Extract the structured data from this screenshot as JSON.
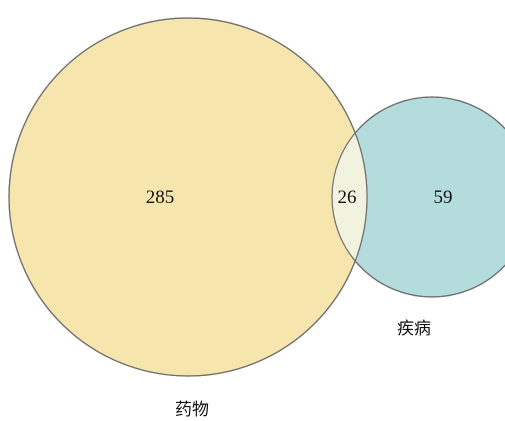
{
  "venn": {
    "sets": [
      {
        "label": "药物",
        "count": "285",
        "color": "#f6e6ad"
      },
      {
        "label": "疾病",
        "count": "59",
        "color": "#b5dcdc"
      }
    ],
    "intersection": {
      "count": "26",
      "color": "#f1f3df"
    },
    "outline_color": "#6f6f6f"
  }
}
